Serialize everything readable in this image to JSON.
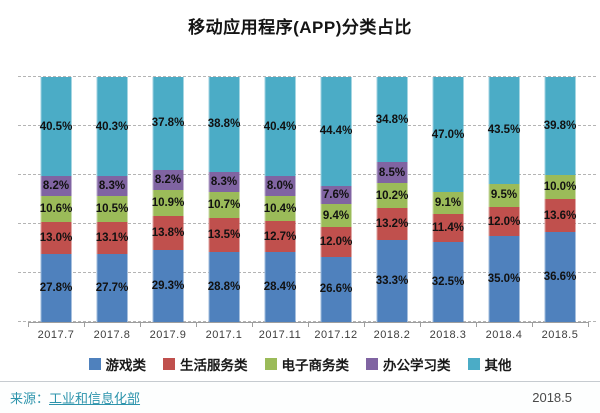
{
  "chart_data": {
    "type": "bar",
    "subtype": "stacked-percentage",
    "title": "移动应用程序(APP)分类占比",
    "categories": [
      "2017.7",
      "2017.8",
      "2017.9",
      "2017.1",
      "2017.11",
      "2017.12",
      "2018.2",
      "2018.3",
      "2018.4",
      "2018.5"
    ],
    "series": [
      {
        "key": "games",
        "name": "游戏类",
        "color": "#4f81bd",
        "values": [
          27.8,
          27.7,
          29.3,
          28.8,
          28.4,
          26.6,
          33.3,
          32.5,
          35.0,
          36.6
        ]
      },
      {
        "key": "life-services",
        "name": "生活服务类",
        "color": "#c0504d",
        "values": [
          13.0,
          13.1,
          13.8,
          13.5,
          12.7,
          12.0,
          13.2,
          11.4,
          12.0,
          13.6
        ]
      },
      {
        "key": "e-commerce",
        "name": "电子商务类",
        "color": "#9bbb59",
        "values": [
          10.6,
          10.5,
          10.9,
          10.7,
          10.4,
          9.4,
          10.2,
          9.1,
          9.5,
          10.0
        ]
      },
      {
        "key": "office-study",
        "name": "办公学习类",
        "color": "#8064a2",
        "values": [
          8.2,
          8.3,
          8.2,
          8.3,
          8.0,
          7.6,
          8.5,
          null,
          null,
          null
        ]
      },
      {
        "key": "other",
        "name": "其他",
        "color": "#4bacc6",
        "values": [
          40.5,
          40.3,
          37.8,
          38.8,
          40.4,
          44.4,
          34.8,
          47.0,
          43.5,
          39.8
        ]
      }
    ],
    "ylim": [
      0,
      100
    ],
    "gridlines": [
      0,
      20,
      40,
      60,
      80,
      100
    ],
    "grid_style": "dashed",
    "legend_position": "bottom",
    "value_suffix": "%"
  },
  "footer": {
    "source_prefix": "来源：",
    "source_name": "工业和信息化部",
    "date": "2018.5"
  }
}
